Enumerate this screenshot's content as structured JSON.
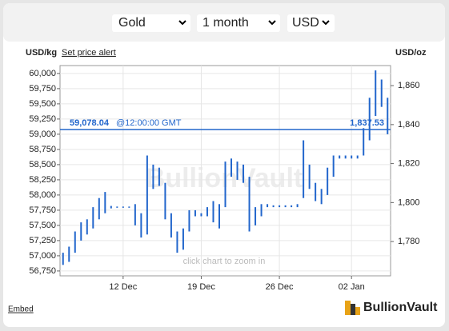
{
  "controls": [
    "Gold",
    "1 month",
    "USD"
  ],
  "y_unit_label": "USD/kg",
  "alert_link": "Set price alert",
  "y2_unit_label": "USD/oz",
  "watermark": "BullionVault",
  "zoom_hint": "click chart to zoom in",
  "embed": "Embed",
  "logo": "BullionVault",
  "chart_data": {
    "type": "range",
    "color": "#2266cc",
    "grid": true,
    "categories": [
      null,
      null,
      null,
      null,
      null,
      null,
      null,
      null,
      null,
      null,
      "12 Dec",
      null,
      null,
      null,
      null,
      null,
      null,
      null,
      null,
      null,
      null,
      null,
      null,
      "19 Dec",
      null,
      null,
      null,
      null,
      null,
      null,
      null,
      null,
      null,
      null,
      null,
      null,
      "26 Dec",
      null,
      null,
      null,
      null,
      null,
      null,
      null,
      null,
      null,
      null,
      null,
      "02 Jan",
      null,
      null,
      null,
      null,
      null,
      null
    ],
    "low": [
      56850,
      56900,
      57050,
      57250,
      57350,
      57450,
      57600,
      57700,
      57780,
      57790,
      57790,
      57790,
      57500,
      57300,
      57350,
      58100,
      58150,
      57600,
      57300,
      57050,
      57100,
      57400,
      57650,
      57650,
      57650,
      57550,
      57450,
      57800,
      58300,
      58250,
      58200,
      57400,
      57500,
      57650,
      57800,
      57800,
      57800,
      57800,
      57800,
      57800,
      57950,
      58100,
      57900,
      57850,
      58000,
      58300,
      58600,
      58600,
      58600,
      58600,
      58650,
      58900,
      59300,
      59450,
      59000
    ],
    "high": [
      57050,
      57150,
      57400,
      57550,
      57600,
      57800,
      57950,
      58050,
      57820,
      57810,
      57810,
      57810,
      57850,
      57700,
      58650,
      58500,
      58450,
      58200,
      57700,
      57400,
      57450,
      57750,
      57750,
      57700,
      57800,
      57900,
      57850,
      58550,
      58600,
      58550,
      58500,
      58300,
      57800,
      57850,
      57850,
      57830,
      57830,
      57830,
      57830,
      57850,
      58900,
      58500,
      58200,
      58100,
      58450,
      58650,
      58650,
      58650,
      58650,
      58650,
      59100,
      59600,
      60050,
      59900,
      59600
    ],
    "ylim": [
      56670,
      60130
    ],
    "yticks": [
      {
        "value": 56750,
        "label": "56,750"
      },
      {
        "value": 57000,
        "label": "57,000"
      },
      {
        "value": 57250,
        "label": "57,250"
      },
      {
        "value": 57500,
        "label": "57,500"
      },
      {
        "value": 57750,
        "label": "57,750"
      },
      {
        "value": 58000,
        "label": "58,000"
      },
      {
        "value": 58250,
        "label": "58,250"
      },
      {
        "value": 58500,
        "label": "58,500"
      },
      {
        "value": 58750,
        "label": "58,750"
      },
      {
        "value": 59000,
        "label": "59,000"
      },
      {
        "value": 59250,
        "label": "59,250"
      },
      {
        "value": 59500,
        "label": "59,500"
      },
      {
        "value": 59750,
        "label": "59,750"
      },
      {
        "value": 60000,
        "label": "60,000"
      }
    ],
    "y2lim": [
      1762.4,
      1870.3
    ],
    "y2ticks": [
      {
        "value": 1780,
        "label": "1,780"
      },
      {
        "value": 1800,
        "label": "1,800"
      },
      {
        "value": 1820,
        "label": "1,820"
      },
      {
        "value": 1840,
        "label": "1,840"
      },
      {
        "value": 1860,
        "label": "1,860"
      }
    ],
    "crosshair": {
      "value": 59078.04,
      "label": "59,078.04",
      "time_label": "@12:00:00 GMT",
      "y2": {
        "value": 1837.53,
        "label": "1,837.53"
      }
    }
  }
}
